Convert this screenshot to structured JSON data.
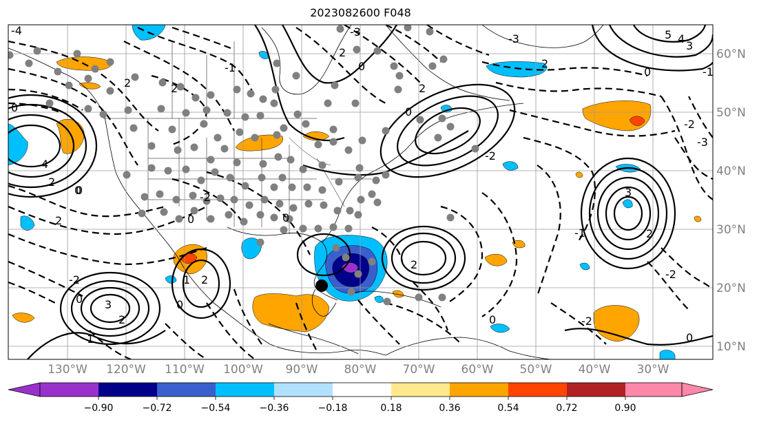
{
  "title": "2023082600 F048",
  "map": {
    "lon_ticks": [
      "130°W",
      "120°W",
      "110°W",
      "100°W",
      "90°W",
      "80°W",
      "70°W",
      "60°W",
      "50°W",
      "40°W",
      "30°W"
    ],
    "lat_ticks": [
      "60°N",
      "50°N",
      "40°N",
      "30°N",
      "20°N",
      "10°N"
    ],
    "contour_labels": [
      "5",
      "4",
      "3",
      "2",
      "1",
      "0",
      "-1",
      "-2",
      "-3",
      "-4"
    ],
    "colors": {
      "axis_text": "#808080",
      "grid": "#9a9a9a",
      "contour": "#000000",
      "station_dot": "#808080"
    }
  },
  "colorbar": {
    "tick_labels": [
      "−0.90",
      "−0.72",
      "−0.54",
      "−0.36",
      "−0.18",
      "0.18",
      "0.36",
      "0.54",
      "0.72",
      "0.90"
    ],
    "colors": [
      "#9932cc",
      "#00008b",
      "#3a5fcd",
      "#00bfff",
      "#b0e2ff",
      "#ffffff",
      "#ffe98c",
      "#ffa500",
      "#ff4500",
      "#b22222",
      "#ff88aa"
    ]
  }
}
